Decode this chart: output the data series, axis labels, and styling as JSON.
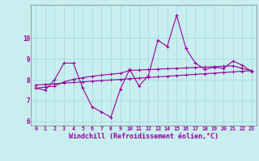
{
  "x": [
    0,
    1,
    2,
    3,
    4,
    5,
    6,
    7,
    8,
    9,
    10,
    11,
    12,
    13,
    14,
    15,
    16,
    17,
    18,
    19,
    20,
    21,
    22,
    23
  ],
  "line1": [
    7.6,
    7.5,
    8.0,
    8.8,
    8.8,
    7.6,
    6.7,
    6.45,
    6.2,
    7.55,
    8.5,
    7.7,
    8.2,
    9.9,
    9.6,
    11.1,
    9.5,
    8.8,
    8.5,
    8.6,
    8.55,
    8.9,
    8.7,
    8.4
  ],
  "regression1": [
    7.75,
    7.78,
    7.81,
    7.84,
    7.87,
    7.9,
    7.93,
    7.96,
    7.99,
    8.02,
    8.05,
    8.08,
    8.11,
    8.14,
    8.17,
    8.2,
    8.23,
    8.26,
    8.29,
    8.32,
    8.35,
    8.38,
    8.41,
    8.44
  ],
  "regression2": [
    7.6,
    7.65,
    7.7,
    7.9,
    8.02,
    8.1,
    8.17,
    8.22,
    8.27,
    8.31,
    8.45,
    8.47,
    8.49,
    8.51,
    8.53,
    8.55,
    8.57,
    8.59,
    8.61,
    8.63,
    8.65,
    8.67,
    8.55,
    8.42
  ],
  "line_color": "#990099",
  "bg_color": "#c8eef0",
  "grid_color": "#a8dde0",
  "xlabel": "Windchill (Refroidissement éolien,°C)",
  "ylim": [
    5.8,
    11.6
  ],
  "xlim": [
    -0.5,
    23.5
  ],
  "yticks": [
    6,
    7,
    8,
    9,
    10
  ],
  "xticks": [
    0,
    1,
    2,
    3,
    4,
    5,
    6,
    7,
    8,
    9,
    10,
    11,
    12,
    13,
    14,
    15,
    16,
    17,
    18,
    19,
    20,
    21,
    22,
    23
  ]
}
